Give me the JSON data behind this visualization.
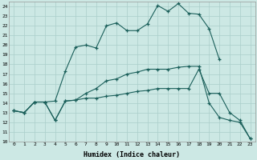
{
  "xlabel": "Humidex (Indice chaleur)",
  "background_color": "#cce8e4",
  "grid_color": "#aaceca",
  "line_color": "#1a5f5a",
  "xlim": [
    -0.5,
    23.5
  ],
  "ylim": [
    10,
    24.5
  ],
  "xticks": [
    0,
    1,
    2,
    3,
    4,
    5,
    6,
    7,
    8,
    9,
    10,
    11,
    12,
    13,
    14,
    15,
    16,
    17,
    18,
    19,
    20,
    21,
    22,
    23
  ],
  "yticks": [
    10,
    11,
    12,
    13,
    14,
    15,
    16,
    17,
    18,
    19,
    20,
    21,
    22,
    23,
    24
  ],
  "line1_x": [
    0,
    1,
    2,
    3,
    4,
    5,
    6,
    7,
    8,
    9,
    10,
    11,
    12,
    13,
    14,
    15,
    16,
    17,
    18,
    19,
    20,
    21,
    22,
    23
  ],
  "line1_y": [
    13.2,
    13.0,
    14.1,
    14.1,
    14.2,
    17.3,
    19.8,
    20.0,
    19.7,
    22.0,
    22.3,
    21.5,
    21.5,
    22.2,
    24.1,
    23.5,
    24.3,
    23.3,
    23.2,
    21.7,
    18.5,
    null,
    null,
    null
  ],
  "line2_x": [
    0,
    1,
    2,
    3,
    4,
    5,
    6,
    7,
    8,
    9,
    10,
    11,
    12,
    13,
    14,
    15,
    16,
    17,
    18,
    19,
    20,
    21,
    22,
    23
  ],
  "line2_y": [
    13.2,
    13.0,
    14.1,
    14.1,
    12.2,
    14.2,
    14.3,
    14.5,
    14.5,
    14.7,
    14.8,
    15.0,
    15.2,
    15.3,
    15.5,
    15.5,
    15.5,
    15.5,
    17.5,
    15.0,
    15.0,
    13.0,
    12.2,
    10.3
  ],
  "line3_x": [
    0,
    1,
    2,
    3,
    4,
    5,
    6,
    7,
    8,
    9,
    10,
    11,
    12,
    13,
    14,
    15,
    16,
    17,
    18,
    19,
    20,
    21,
    22,
    23
  ],
  "line3_y": [
    13.2,
    13.0,
    14.1,
    14.1,
    12.2,
    14.2,
    14.3,
    15.0,
    15.5,
    16.3,
    16.5,
    17.0,
    17.2,
    17.5,
    17.5,
    17.5,
    17.7,
    17.8,
    17.8,
    14.0,
    12.5,
    12.2,
    12.0,
    10.3
  ]
}
